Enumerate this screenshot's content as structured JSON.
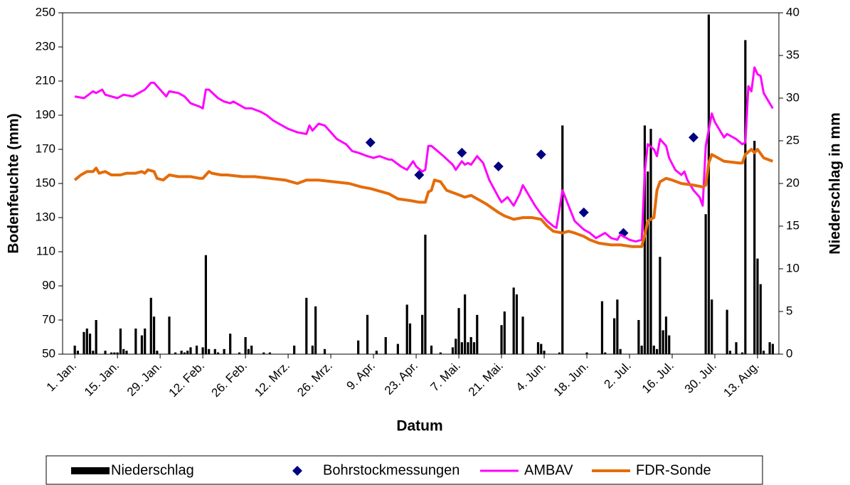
{
  "chart_data": {
    "type": "combo",
    "x_label": "Datum",
    "y_label": "Bodenfeuchte (mm)",
    "y2_label": "Niederschlag in mm",
    "xlim": [
      -3,
      232
    ],
    "xticks": [
      {
        "value": 1,
        "label": "1. Jan."
      },
      {
        "value": 15,
        "label": "15. Jan."
      },
      {
        "value": 29,
        "label": "29. Jan."
      },
      {
        "value": 43,
        "label": "12. Feb."
      },
      {
        "value": 57,
        "label": "26. Feb."
      },
      {
        "value": 71,
        "label": "12. Mrz."
      },
      {
        "value": 85,
        "label": "26. Mrz."
      },
      {
        "value": 99,
        "label": "9. Apr."
      },
      {
        "value": 113,
        "label": "23. Apr."
      },
      {
        "value": 127,
        "label": "7. Mai."
      },
      {
        "value": 141,
        "label": "21. Mai."
      },
      {
        "value": 155,
        "label": "4. Jun."
      },
      {
        "value": 169,
        "label": "18. Jun."
      },
      {
        "value": 183,
        "label": "2. Jul."
      },
      {
        "value": 197,
        "label": "16. Jul."
      },
      {
        "value": 211,
        "label": "30. Jul."
      },
      {
        "value": 225,
        "label": "13. Aug."
      }
    ],
    "ylim": [
      50,
      250
    ],
    "yticks": [
      50,
      70,
      90,
      110,
      130,
      150,
      170,
      190,
      210,
      230,
      250
    ],
    "y2lim": [
      0,
      40
    ],
    "y2ticks": [
      0,
      5,
      10,
      15,
      20,
      25,
      30,
      35,
      40
    ],
    "grid": false,
    "legend": "bottom",
    "series": [
      {
        "name": "Niederschlag",
        "type": "bar",
        "axis": "y2",
        "color": "#000000",
        "x": [
          1,
          2,
          4,
          5,
          6,
          7,
          8,
          11,
          13,
          14,
          15,
          16,
          17,
          18,
          21,
          23,
          24,
          26,
          27,
          28,
          32,
          34,
          36,
          37,
          38,
          39,
          41,
          43,
          44,
          45,
          47,
          48,
          50,
          52,
          55,
          57,
          58,
          59,
          63,
          65,
          73,
          77,
          79,
          80,
          83,
          94,
          97,
          100,
          103,
          107,
          110,
          111,
          115,
          116,
          118,
          121,
          125,
          126,
          127,
          128,
          129,
          130,
          131,
          132,
          133,
          141,
          142,
          145,
          146,
          148,
          153,
          154,
          155,
          160,
          161,
          169,
          174,
          175,
          178,
          179,
          180,
          186,
          187,
          188,
          189,
          190,
          191,
          192,
          193,
          194,
          195,
          196,
          208,
          209,
          210,
          215,
          216,
          218,
          220,
          221,
          224,
          225,
          226,
          227,
          229,
          230
        ],
        "values": [
          1.0,
          0.4,
          2.6,
          3.0,
          2.4,
          0.4,
          4.0,
          0.4,
          0.2,
          0.2,
          0.2,
          3.0,
          0.6,
          0.4,
          3.0,
          2.2,
          3.0,
          6.6,
          4.4,
          0.4,
          4.4,
          0.2,
          0.4,
          0.2,
          0.4,
          0.8,
          1.0,
          0.8,
          11.6,
          0.6,
          0.6,
          0.2,
          0.6,
          2.4,
          0.2,
          2.0,
          0.6,
          1.0,
          0.2,
          0.2,
          1.0,
          6.6,
          1.0,
          5.6,
          0.6,
          1.6,
          4.6,
          0.4,
          2.0,
          1.2,
          5.8,
          3.6,
          4.6,
          14.0,
          1.0,
          0.2,
          0.8,
          1.8,
          5.4,
          1.4,
          7.0,
          1.4,
          2.0,
          1.4,
          4.6,
          3.4,
          5.0,
          7.8,
          7.0,
          4.4,
          1.4,
          1.2,
          0.4,
          0.2,
          26.8,
          0.2,
          6.2,
          0.2,
          4.2,
          6.4,
          0.6,
          4.0,
          1.0,
          26.8,
          21.4,
          26.4,
          1.0,
          0.6,
          11.4,
          2.8,
          4.4,
          2.2,
          16.4,
          39.8,
          6.4,
          5.2,
          0.4,
          1.4,
          0.2,
          36.8,
          25.0,
          11.2,
          8.2,
          0.4,
          1.4,
          1.2
        ]
      },
      {
        "name": "Bohrstockmessungen",
        "type": "scatter",
        "color": "#000080",
        "x": [
          98,
          114,
          128,
          140,
          154,
          168,
          181,
          204
        ],
        "values": [
          174,
          155,
          168,
          160,
          167,
          133,
          121,
          177
        ]
      },
      {
        "name": "AMBAV",
        "type": "line",
        "color": "#FF00FF",
        "x": [
          1,
          4,
          7,
          8,
          10,
          11,
          15,
          17,
          20,
          22,
          24,
          26,
          27,
          29,
          31,
          32,
          35,
          37,
          39,
          42,
          43,
          44,
          45,
          48,
          50,
          52,
          53,
          55,
          57,
          59,
          62,
          64,
          66,
          69,
          71,
          74,
          77,
          78,
          79,
          81,
          83,
          85,
          87,
          90,
          92,
          94,
          97,
          99,
          101,
          104,
          105,
          108,
          110,
          112,
          113,
          115,
          116,
          117,
          118,
          120,
          122,
          125,
          126,
          128,
          129,
          130,
          131,
          133,
          135,
          137,
          140,
          141,
          143,
          145,
          147,
          148,
          150,
          152,
          154,
          156,
          158,
          159,
          161,
          163,
          165,
          168,
          170,
          172,
          175,
          177,
          179,
          180,
          183,
          185,
          187,
          188,
          189,
          191,
          192,
          193,
          195,
          196,
          198,
          200,
          201,
          202,
          204,
          206,
          207,
          208,
          210,
          211,
          213,
          214,
          215,
          218,
          220,
          221,
          222,
          223,
          224,
          225,
          226,
          227,
          229,
          230
        ],
        "values": [
          201,
          200,
          204,
          203,
          205,
          202,
          200,
          202,
          201,
          203,
          205,
          209,
          209,
          205,
          201,
          204,
          203,
          201,
          197,
          195,
          194,
          205,
          205,
          200,
          198,
          197,
          198,
          196,
          194,
          194,
          192,
          190,
          187,
          184,
          182,
          180,
          179,
          184,
          181,
          185,
          184,
          180,
          176,
          173,
          169,
          168,
          166,
          165,
          166,
          164,
          164,
          160,
          158,
          163,
          160,
          157,
          158,
          172,
          172,
          169,
          166,
          161,
          158,
          163,
          161,
          162,
          161,
          166,
          162,
          152,
          142,
          139,
          142,
          137,
          144,
          149,
          143,
          137,
          132,
          128,
          125,
          124,
          146,
          137,
          128,
          123,
          121,
          118,
          121,
          118,
          117,
          120,
          117,
          116,
          117,
          157,
          173,
          170,
          166,
          176,
          172,
          165,
          158,
          155,
          157,
          152,
          146,
          142,
          137,
          172,
          191,
          186,
          180,
          177,
          179,
          176,
          173,
          174,
          207,
          204,
          218,
          214,
          213,
          203,
          197,
          194
        ]
      },
      {
        "name": "FDR-Sonde",
        "type": "line",
        "color": "#E46C0A",
        "x": [
          1,
          3,
          5,
          7,
          8,
          9,
          11,
          13,
          16,
          18,
          21,
          23,
          24,
          25,
          27,
          28,
          30,
          32,
          35,
          37,
          39,
          42,
          43,
          45,
          46,
          49,
          51,
          56,
          60,
          65,
          70,
          74,
          77,
          81,
          86,
          91,
          95,
          98,
          100,
          104,
          107,
          111,
          114,
          116,
          117,
          118,
          119,
          121,
          123,
          126,
          129,
          131,
          133,
          136,
          140,
          142,
          145,
          148,
          151,
          154,
          156,
          158,
          161,
          163,
          165,
          168,
          170,
          173,
          177,
          180,
          184,
          187,
          188,
          189,
          191,
          192,
          193,
          195,
          197,
          200,
          204,
          207,
          208,
          209,
          210,
          212,
          214,
          219,
          220,
          221,
          223,
          224,
          225,
          227,
          230
        ],
        "values": [
          152,
          155,
          157,
          157,
          159,
          156,
          157,
          155,
          155,
          156,
          156,
          157,
          156,
          158,
          157,
          153,
          152,
          155,
          154,
          154,
          154,
          153,
          153,
          157,
          156,
          155,
          155,
          154,
          154,
          153,
          152,
          150,
          152,
          152,
          151,
          150,
          148,
          147,
          146,
          144,
          141,
          140,
          139,
          139,
          145,
          146,
          152,
          151,
          146,
          144,
          142,
          143,
          141,
          138,
          133,
          131,
          129,
          130,
          130,
          129,
          125,
          122,
          121,
          122,
          121,
          119,
          117,
          115,
          114,
          114,
          113,
          113,
          120,
          128,
          130,
          146,
          151,
          153,
          152,
          150,
          149,
          148,
          149,
          162,
          167,
          165,
          163,
          162,
          162,
          167,
          170,
          168,
          170,
          165,
          163
        ]
      }
    ]
  }
}
